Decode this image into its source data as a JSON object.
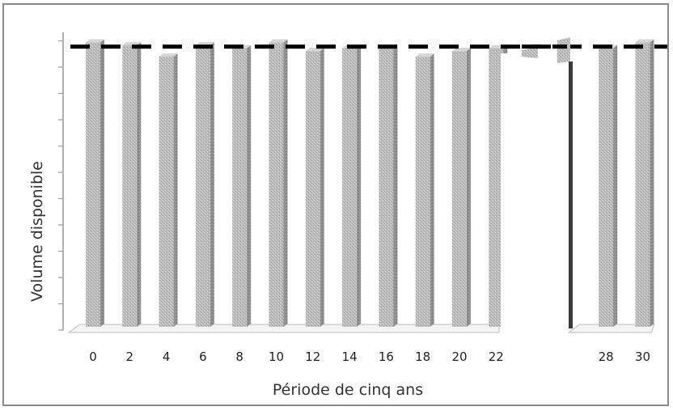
{
  "chart_data": {
    "type": "bar",
    "xlabel": "Période de cinq ans",
    "ylabel": "Volume disponible",
    "categories": [
      "0",
      "2",
      "4",
      "6",
      "8",
      "10",
      "12",
      "14",
      "16",
      "18",
      "20",
      "22",
      "28",
      "30"
    ],
    "values": [
      100,
      99,
      95,
      99,
      98,
      100,
      97,
      98,
      98,
      95,
      97,
      98,
      98,
      100
    ],
    "ylim": [
      0,
      103
    ],
    "reference_line": {
      "value": 98,
      "style": "dashed",
      "color": "#000000"
    },
    "grid": false,
    "legend": "none",
    "bar_color": "#b4b4b4"
  }
}
